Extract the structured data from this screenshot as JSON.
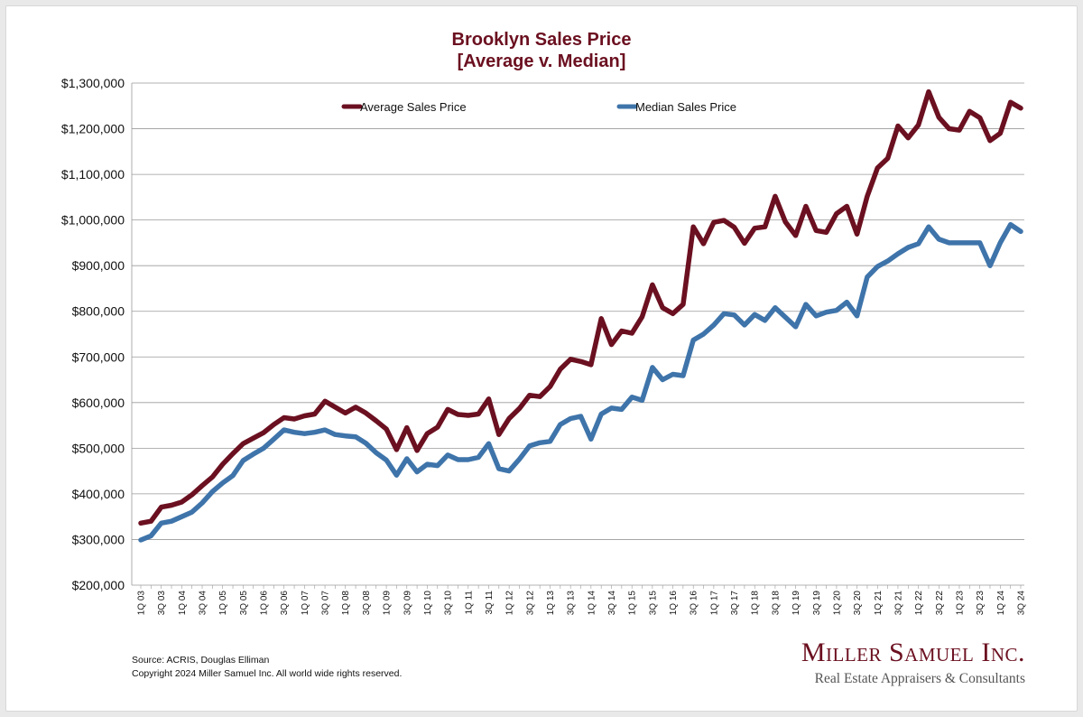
{
  "page": {
    "title_line1": "Brooklyn Sales Price",
    "title_line2": "[Average v. Median]",
    "source": "Source: ACRIS, Douglas Elliman",
    "copyright": "Copyright 2024 Miller Samuel Inc.  All world wide rights reserved.",
    "logo_name": "Miller Samuel Inc.",
    "logo_tagline": "Real Estate Appraisers & Consultants"
  },
  "chart_data": {
    "type": "line",
    "title": "Brooklyn Sales Price [Average v. Median]",
    "ylim": [
      200000,
      1300000
    ],
    "ytick_step": 100000,
    "yticks": [
      "$200,000",
      "$300,000",
      "$400,000",
      "$500,000",
      "$600,000",
      "$700,000",
      "$800,000",
      "$900,000",
      "$1,000,000",
      "$1,100,000",
      "$1,200,000",
      "$1,300,000"
    ],
    "grid": true,
    "legend": "top",
    "x": [
      "1Q 03",
      "2Q 03",
      "3Q 03",
      "4Q 03",
      "1Q 04",
      "2Q 04",
      "3Q 04",
      "4Q 04",
      "1Q 05",
      "2Q 05",
      "3Q 05",
      "4Q 05",
      "1Q 06",
      "2Q 06",
      "3Q 06",
      "4Q 06",
      "1Q 07",
      "2Q 07",
      "3Q 07",
      "4Q 07",
      "1Q 08",
      "2Q 08",
      "3Q 08",
      "4Q 08",
      "1Q 09",
      "2Q 09",
      "3Q 09",
      "4Q 09",
      "1Q 10",
      "2Q 10",
      "3Q 10",
      "4Q 10",
      "1Q 11",
      "2Q 11",
      "3Q 11",
      "4Q 11",
      "1Q 12",
      "2Q 12",
      "3Q 12",
      "4Q 12",
      "1Q 13",
      "2Q 13",
      "3Q 13",
      "4Q 13",
      "1Q 14",
      "2Q 14",
      "3Q 14",
      "4Q 14",
      "1Q 15",
      "2Q 15",
      "3Q 15",
      "4Q 15",
      "1Q 16",
      "2Q 16",
      "3Q 16",
      "4Q 16",
      "1Q 17",
      "2Q 17",
      "3Q 17",
      "4Q 17",
      "1Q 18",
      "2Q 18",
      "3Q 18",
      "4Q 18",
      "1Q 19",
      "2Q 19",
      "3Q 19",
      "4Q 19",
      "1Q 20",
      "2Q 20",
      "3Q 20",
      "4Q 20",
      "1Q 21",
      "2Q 21",
      "3Q 21",
      "4Q 21",
      "1Q 22",
      "2Q 22",
      "3Q 22",
      "4Q 22",
      "1Q 23",
      "2Q 23",
      "3Q 23",
      "4Q 23",
      "1Q 24",
      "2Q 24",
      "3Q 24"
    ],
    "xtick_labels": [
      "1Q 03",
      "3Q 03",
      "1Q 04",
      "3Q 04",
      "1Q 05",
      "3Q 05",
      "1Q 06",
      "3Q 06",
      "1Q 07",
      "3Q 07",
      "1Q 08",
      "3Q 08",
      "1Q 09",
      "3Q 09",
      "1Q 10",
      "3Q 10",
      "1Q 11",
      "3Q 11",
      "1Q 12",
      "3Q 12",
      "1Q 13",
      "3Q 13",
      "1Q 14",
      "3Q 14",
      "1Q 15",
      "3Q 15",
      "1Q 16",
      "3Q 16",
      "1Q 17",
      "3Q 17",
      "1Q 18",
      "3Q 18",
      "1Q 19",
      "3Q 19",
      "1Q 20",
      "3Q 20",
      "1Q 21",
      "3Q 21",
      "1Q 22",
      "3Q 22",
      "1Q 23",
      "3Q 23",
      "1Q 24",
      "3Q 24"
    ],
    "series": [
      {
        "name": "Average Sales Price",
        "color": "#6b1020",
        "values": [
          336000,
          340000,
          371000,
          375000,
          382000,
          398000,
          418000,
          437000,
          465000,
          488000,
          510000,
          522000,
          534000,
          552000,
          567000,
          564000,
          571000,
          575000,
          603000,
          590000,
          577000,
          590000,
          577000,
          560000,
          542000,
          497000,
          545000,
          495000,
          532000,
          546000,
          585000,
          574000,
          572000,
          575000,
          608000,
          530000,
          565000,
          587000,
          616000,
          613000,
          635000,
          673000,
          695000,
          690000,
          683000,
          784000,
          727000,
          757000,
          752000,
          788000,
          858000,
          808000,
          795000,
          815000,
          985000,
          948000,
          995000,
          999000,
          984000,
          949000,
          982000,
          985000,
          1052000,
          996000,
          966000,
          1030000,
          977000,
          973000,
          1014000,
          1030000,
          969000,
          1052000,
          1114000,
          1135000,
          1206000,
          1180000,
          1208000,
          1281000,
          1225000,
          1200000,
          1197000,
          1238000,
          1224000,
          1174000,
          1190000,
          1258000,
          1245000
        ]
      },
      {
        "name": "Median Sales Price",
        "color": "#3e74aa",
        "values": [
          299000,
          308000,
          336000,
          340000,
          350000,
          360000,
          380000,
          405000,
          424000,
          440000,
          473000,
          487000,
          500000,
          520000,
          540000,
          535000,
          532000,
          535000,
          540000,
          530000,
          527000,
          525000,
          511000,
          490000,
          474000,
          441000,
          477000,
          448000,
          465000,
          462000,
          485000,
          475000,
          475000,
          480000,
          510000,
          455000,
          450000,
          476000,
          505000,
          512000,
          515000,
          552000,
          565000,
          570000,
          520000,
          575000,
          588000,
          585000,
          612000,
          605000,
          677000,
          650000,
          662000,
          659000,
          737000,
          750000,
          770000,
          795000,
          792000,
          770000,
          793000,
          780000,
          808000,
          787000,
          766000,
          815000,
          790000,
          798000,
          802000,
          820000,
          790000,
          875000,
          898000,
          910000,
          926000,
          940000,
          948000,
          985000,
          958000,
          950000,
          950000,
          950000,
          950000,
          900000,
          950000,
          990000,
          975000
        ]
      }
    ]
  }
}
